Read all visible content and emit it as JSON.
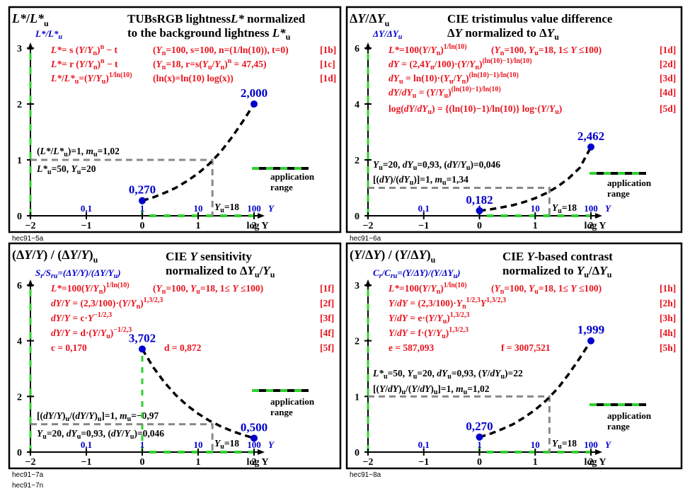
{
  "page_footer": "hec91−7n",
  "chart_data": [
    {
      "type": "line",
      "corner_label": "L*/L*u",
      "axis_title": "L*/L*u",
      "title": [
        "TUBsRGB lightness L* normalized",
        "to the background lightness L*u"
      ],
      "formulas": [
        {
          "text": "L*= s (Y/Yn)^n − t",
          "params": "(Yn=100, s=100, n=(1/ln(10)), t=0)",
          "ref": "[1b]"
        },
        {
          "text": "L*= r (Y/Yn)^n − t",
          "params": "(Yn=18, r=s(Yu/Yn)^n = 47,45)",
          "ref": "[1c]"
        },
        {
          "text": "L*/L*u=(Y/Yu)^1/ln(10)",
          "params": "(ln(x)=ln(10) log(x))",
          "ref": "[1d]"
        }
      ],
      "annotations": [
        "(L*/L*u)=1, mu=1,02",
        "L*u=50, Yu=20"
      ],
      "yu_label": "Yu=18",
      "footer": "hec91−5a",
      "xlim": [
        -2,
        2
      ],
      "ylim": [
        0,
        3
      ],
      "xticks": [
        -2,
        -1,
        0,
        1,
        2
      ],
      "yticks": [
        0,
        1,
        2,
        3
      ],
      "y_axis_ticks": [
        "0.1",
        "1",
        "10",
        "100"
      ],
      "xlabel": "log Y",
      "xunit": "Y",
      "curve_x": [
        0,
        0.2,
        0.4,
        0.6,
        0.8,
        1.0,
        1.2,
        1.4,
        1.6,
        1.8,
        2.0
      ],
      "curve_y": [
        0.27,
        0.33,
        0.41,
        0.5,
        0.62,
        0.76,
        0.93,
        1.14,
        1.4,
        1.69,
        2.0
      ],
      "points": [
        {
          "x": 0,
          "y": 0.27,
          "label": "0,270"
        },
        {
          "x": 2,
          "y": 2.0,
          "label": "2,000"
        }
      ],
      "ref_level": 1,
      "ref_x": 1.255,
      "application_range": [
        0,
        2
      ],
      "legend": "application range"
    },
    {
      "type": "line",
      "corner_label": "ΔY/ΔYu",
      "axis_title": "ΔY/ΔYu",
      "title": [
        "CIE tristimulus value difference",
        "ΔY normalized to ΔYu"
      ],
      "formulas": [
        {
          "text": "L*=100(Y/Yn)^1/ln(10)",
          "params": "(Yn=100, Yu=18, 1≤ Y ≤100)",
          "ref": "[1d]"
        },
        {
          "text": "dY = (2,4Yn/100)·(Y/Yn)^(ln(10)−1)/ln(10)",
          "params": "",
          "ref": "[2d]"
        },
        {
          "text": "dYu = ln(10)·(Yu/Yn)^(ln(10)−1)/ln(10)",
          "params": "",
          "ref": "[3d]"
        },
        {
          "text": "dY/dYu = (Y/Yu)^(ln(10)−1)/ln(10)",
          "params": "",
          "ref": "[4d]"
        },
        {
          "text": "log(dY/dYu) = {(ln(10)−1)/ln(10)} log·(Y/Yu)",
          "params": "",
          "ref": "[5d]"
        }
      ],
      "annotations": [
        "Yu=20, dYu=0,93, (dY/Yu)=0,046",
        "[(dY)/(dYu)]=1, mu=1,34"
      ],
      "yu_label": "Yu=18",
      "footer": "hec91−6a",
      "xlim": [
        -2,
        2
      ],
      "ylim": [
        0,
        6
      ],
      "xticks": [
        -2,
        -1,
        0,
        1,
        2
      ],
      "yticks": [
        0,
        2,
        4,
        6
      ],
      "y_axis_ticks": [
        "0.1",
        "1",
        "10",
        "100"
      ],
      "xlabel": "log Y",
      "xunit": "Y",
      "curve_x": [
        0,
        0.2,
        0.4,
        0.6,
        0.8,
        1.0,
        1.2,
        1.4,
        1.6,
        1.8,
        2.0
      ],
      "curve_y": [
        0.18,
        0.23,
        0.3,
        0.38,
        0.49,
        0.63,
        0.81,
        1.04,
        1.34,
        1.72,
        2.46
      ],
      "points": [
        {
          "x": 0,
          "y": 0.182,
          "label": "0,182"
        },
        {
          "x": 2,
          "y": 2.462,
          "label": "2,462"
        }
      ],
      "ref_level": 1,
      "ref_x": 1.255,
      "application_range": [
        0,
        2
      ],
      "legend": "application range"
    },
    {
      "type": "line",
      "corner_label": "(ΔY/Y) / (ΔY/Y)u",
      "axis_title": "Sr/Sru=(ΔY/Y)/(ΔY/Y)u",
      "title": [
        "CIE Y sensitivity",
        "normalized to ΔYu/Yu"
      ],
      "formulas": [
        {
          "text": "L*=100(Y/Yn)^1/ln(10)",
          "params": "(Yn=100, Yu=18, 1≤ Y ≤100)",
          "ref": "[1f]"
        },
        {
          "text": "dY/Y = (2,3/100)·(Y/Yn)^1,3/2,3",
          "params": "",
          "ref": "[2f]"
        },
        {
          "text": "dY/Y = c·Y^−1/2,3",
          "params": "",
          "ref": "[3f]"
        },
        {
          "text": "dY/Y = d·(Y/Yu)^−1/2,3",
          "params": "",
          "ref": "[4f]"
        },
        {
          "text": "c = 0,170",
          "params": "d = 0,872",
          "ref": "[5f]"
        }
      ],
      "annotations": [
        "[(dY/Y)u/(dY/Y)u]=1, mu=−0,97",
        "Yu=20, dYu=0,93, (dY/Yu)=0,046"
      ],
      "yu_label": "Yu=18",
      "footer": "hec91−7a",
      "xlim": [
        -2,
        2
      ],
      "ylim": [
        0,
        6
      ],
      "xticks": [
        -2,
        -1,
        0,
        1,
        2
      ],
      "yticks": [
        0,
        2,
        4,
        6
      ],
      "y_axis_ticks": [
        "0.1",
        "1",
        "10",
        "100"
      ],
      "xlabel": "log Y",
      "xunit": "Y",
      "curve_x": [
        0,
        0.2,
        0.4,
        0.6,
        0.8,
        1.0,
        1.2,
        1.4,
        1.6,
        1.8,
        2.0
      ],
      "curve_y": [
        3.7,
        3.04,
        2.5,
        2.05,
        1.68,
        1.38,
        1.13,
        0.93,
        0.76,
        0.62,
        0.5
      ],
      "points": [
        {
          "x": 0,
          "y": 3.702,
          "label": "3,702"
        },
        {
          "x": 2,
          "y": 0.5,
          "label": "0,500"
        }
      ],
      "ref_level": 1,
      "ref_x": 1.255,
      "application_range": [
        0,
        2
      ],
      "legend": "application range"
    },
    {
      "type": "line",
      "corner_label": "(Y/ΔY) / (Y/ΔY)u",
      "axis_title": "Cr/Cru=(Y/ΔY)/(Y/ΔY)u",
      "title": [
        "CIE Y-based contrast",
        "normalized to Yu/ΔYu"
      ],
      "formulas": [
        {
          "text": "L*=100(Y/Yn)^1/ln(10)",
          "params": "(Yn=100, Yu=18, 1≤ Y ≤100)",
          "ref": "[1h]"
        },
        {
          "text": "Y/dY = (2,3/100)·Yn^1/2,3 Y^1,3/2,3",
          "params": "",
          "ref": "[2h]"
        },
        {
          "text": "Y/dY = e·(Y/Yu)^1,3/2,3",
          "params": "",
          "ref": "[3h]"
        },
        {
          "text": "Y/dY = f·(Y/Yu)^1,3/2,3",
          "params": "",
          "ref": "[4h]"
        },
        {
          "text": "e = 587,093",
          "params": "f = 3007,521",
          "ref": "[5h]"
        }
      ],
      "annotations": [
        "L*u=50, Yu=20, dYu=0,93, (Y/dYu)=22",
        "[(Y/dY)u/(Y/dY)u]=1, mu=1,02"
      ],
      "yu_label": "Yu=18",
      "footer": "hec91−8a",
      "xlim": [
        -2,
        2
      ],
      "ylim": [
        0,
        3
      ],
      "xticks": [
        -2,
        -1,
        0,
        1,
        2
      ],
      "yticks": [
        0,
        1,
        2,
        3
      ],
      "y_axis_ticks": [
        "0.1",
        "1",
        "10",
        "100"
      ],
      "xlabel": "log Y",
      "xunit": "Y",
      "curve_x": [
        0,
        0.2,
        0.4,
        0.6,
        0.8,
        1.0,
        1.2,
        1.4,
        1.6,
        1.8,
        2.0
      ],
      "curve_y": [
        0.27,
        0.33,
        0.41,
        0.5,
        0.62,
        0.76,
        0.93,
        1.14,
        1.4,
        1.69,
        1.999
      ],
      "points": [
        {
          "x": 0,
          "y": 0.27,
          "label": "0,270"
        },
        {
          "x": 2,
          "y": 1.999,
          "label": "1,999"
        }
      ],
      "ref_level": 1,
      "ref_x": 1.255,
      "application_range": [
        0,
        2
      ],
      "legend": "application range"
    }
  ]
}
